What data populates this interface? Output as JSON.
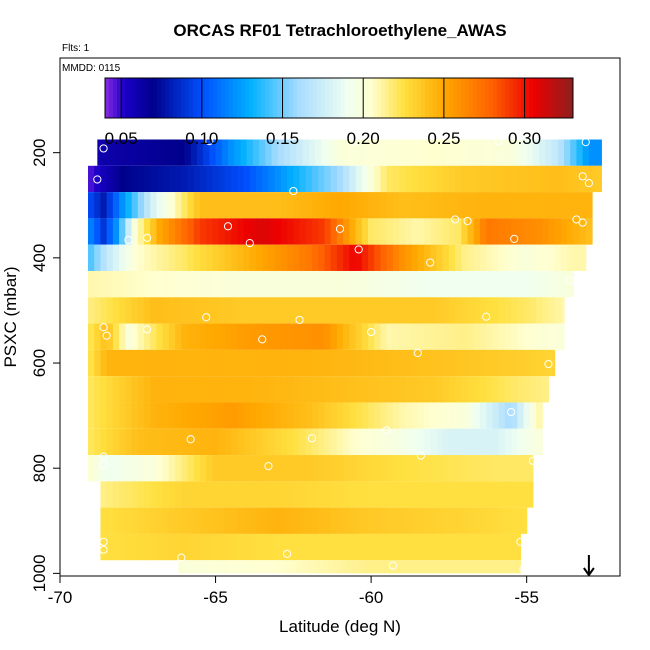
{
  "chart_data": {
    "type": "heatmap",
    "title": "ORCAS RF01 Tetrachloroethylene_AWAS",
    "flights_note": "Flts: 1",
    "date_note": "MMDD: 0115",
    "xlabel": "Latitude (deg N)",
    "ylabel": "PSXC (mbar)",
    "xlim": [
      -70,
      -52
    ],
    "ylim": [
      1005,
      20
    ],
    "x_ticks": [
      -70,
      -65,
      -60,
      -55
    ],
    "x_tick_labels": [
      "-70",
      "-65",
      "-60",
      "-55"
    ],
    "y_ticks": [
      200,
      400,
      600,
      800,
      1000
    ],
    "y_tick_labels": [
      "200",
      "400",
      "600",
      "800",
      "1000"
    ],
    "colorbar": {
      "range": [
        0.04,
        0.33
      ],
      "ticks": [
        0.05,
        0.1,
        0.15,
        0.2,
        0.25,
        0.3
      ],
      "tick_labels": [
        "0.05",
        "0.10",
        "0.15",
        "0.20",
        "0.25",
        "0.30"
      ],
      "stops": [
        {
          "v": 0.04,
          "color": "#8a2be2"
        },
        {
          "v": 0.052,
          "color": "#1a00c8"
        },
        {
          "v": 0.07,
          "color": "#00008b"
        },
        {
          "v": 0.1,
          "color": "#0050ff"
        },
        {
          "v": 0.13,
          "color": "#00b0ff"
        },
        {
          "v": 0.16,
          "color": "#a8dcff"
        },
        {
          "v": 0.19,
          "color": "#f0fff0"
        },
        {
          "v": 0.205,
          "color": "#ffffd0"
        },
        {
          "v": 0.225,
          "color": "#ffe040"
        },
        {
          "v": 0.25,
          "color": "#ffa800"
        },
        {
          "v": 0.28,
          "color": "#ff6000"
        },
        {
          "v": 0.305,
          "color": "#ee0000"
        },
        {
          "v": 0.33,
          "color": "#8b2020"
        }
      ]
    },
    "bands": [
      {
        "p0": 175,
        "p1": 225,
        "lat0": -68.8,
        "lat1": -52.6,
        "profile": [
          [
            -68.8,
            0.06
          ],
          [
            -66,
            0.07
          ],
          [
            -64.5,
            0.12
          ],
          [
            -63,
            0.16
          ],
          [
            -61,
            0.2
          ],
          [
            -58,
            0.205
          ],
          [
            -55.5,
            0.2
          ],
          [
            -54,
            0.17
          ],
          [
            -53,
            0.12
          ],
          [
            -52.6,
            0.12
          ]
        ]
      },
      {
        "p0": 225,
        "p1": 275,
        "lat0": -69.1,
        "lat1": -52.6,
        "profile": [
          [
            -69.1,
            0.045
          ],
          [
            -68,
            0.07
          ],
          [
            -66,
            0.08
          ],
          [
            -64,
            0.1
          ],
          [
            -62,
            0.14
          ],
          [
            -61,
            0.16
          ],
          [
            -59.5,
            0.22
          ],
          [
            -57,
            0.235
          ],
          [
            -54,
            0.24
          ],
          [
            -52.6,
            0.235
          ]
        ]
      },
      {
        "p0": 275,
        "p1": 325,
        "lat0": -69.1,
        "lat1": -52.9,
        "profile": [
          [
            -69.1,
            0.1
          ],
          [
            -68.6,
            0.08
          ],
          [
            -68,
            0.12
          ],
          [
            -67,
            0.18
          ],
          [
            -65.5,
            0.24
          ],
          [
            -63,
            0.24
          ],
          [
            -61,
            0.25
          ],
          [
            -59,
            0.24
          ],
          [
            -56.5,
            0.245
          ],
          [
            -53,
            0.245
          ],
          [
            -52.9,
            0.24
          ]
        ]
      },
      {
        "p0": 325,
        "p1": 375,
        "lat0": -69.1,
        "lat1": -52.9,
        "profile": [
          [
            -69.1,
            0.12
          ],
          [
            -68.6,
            0.09
          ],
          [
            -68.2,
            0.12
          ],
          [
            -67.6,
            0.2
          ],
          [
            -66.8,
            0.25
          ],
          [
            -65.5,
            0.29
          ],
          [
            -63.5,
            0.31
          ],
          [
            -61.5,
            0.29
          ],
          [
            -60,
            0.22
          ],
          [
            -58.5,
            0.21
          ],
          [
            -57.2,
            0.22
          ],
          [
            -56.3,
            0.27
          ],
          [
            -54.5,
            0.26
          ],
          [
            -53,
            0.24
          ],
          [
            -52.9,
            0.24
          ]
        ]
      },
      {
        "p0": 375,
        "p1": 425,
        "lat0": -69.1,
        "lat1": -53.1,
        "profile": [
          [
            -69.1,
            0.14
          ],
          [
            -68.5,
            0.17
          ],
          [
            -67.5,
            0.205
          ],
          [
            -66,
            0.22
          ],
          [
            -64,
            0.245
          ],
          [
            -62,
            0.27
          ],
          [
            -60.5,
            0.305
          ],
          [
            -59,
            0.26
          ],
          [
            -57,
            0.215
          ],
          [
            -55,
            0.2
          ],
          [
            -53.5,
            0.21
          ],
          [
            -53.1,
            0.21
          ]
        ]
      },
      {
        "p0": 425,
        "p1": 475,
        "lat0": -69.1,
        "lat1": -53.5,
        "profile": [
          [
            -69.1,
            0.21
          ],
          [
            -67,
            0.205
          ],
          [
            -64,
            0.2
          ],
          [
            -61,
            0.2
          ],
          [
            -58,
            0.19
          ],
          [
            -55,
            0.19
          ],
          [
            -53.5,
            0.2
          ]
        ]
      },
      {
        "p0": 475,
        "p1": 525,
        "lat0": -69.1,
        "lat1": -53.8,
        "profile": [
          [
            -69.1,
            0.215
          ],
          [
            -67,
            0.24
          ],
          [
            -64,
            0.235
          ],
          [
            -61,
            0.235
          ],
          [
            -58,
            0.235
          ],
          [
            -55,
            0.22
          ],
          [
            -53.8,
            0.21
          ]
        ]
      },
      {
        "p0": 525,
        "p1": 575,
        "lat0": -69.1,
        "lat1": -53.8,
        "profile": [
          [
            -69.1,
            0.22
          ],
          [
            -68.5,
            0.24
          ],
          [
            -67.8,
            0.2
          ],
          [
            -66,
            0.245
          ],
          [
            -64,
            0.255
          ],
          [
            -61.5,
            0.26
          ],
          [
            -59.5,
            0.21
          ],
          [
            -57,
            0.215
          ],
          [
            -55,
            0.205
          ],
          [
            -53.8,
            0.2
          ]
        ]
      },
      {
        "p0": 575,
        "p1": 625,
        "lat0": -69.1,
        "lat1": -54.1,
        "profile": [
          [
            -69.1,
            0.22
          ],
          [
            -68.5,
            0.245
          ],
          [
            -66,
            0.245
          ],
          [
            -62,
            0.245
          ],
          [
            -59,
            0.24
          ],
          [
            -56,
            0.235
          ],
          [
            -54.1,
            0.23
          ]
        ]
      },
      {
        "p0": 625,
        "p1": 675,
        "lat0": -69.1,
        "lat1": -54.3,
        "profile": [
          [
            -69.1,
            0.22
          ],
          [
            -67,
            0.245
          ],
          [
            -64,
            0.245
          ],
          [
            -61,
            0.24
          ],
          [
            -58,
            0.235
          ],
          [
            -55.5,
            0.22
          ],
          [
            -54.3,
            0.215
          ]
        ]
      },
      {
        "p0": 675,
        "p1": 725,
        "lat0": -69.1,
        "lat1": -54.5,
        "profile": [
          [
            -69.1,
            0.22
          ],
          [
            -67,
            0.245
          ],
          [
            -64.5,
            0.255
          ],
          [
            -62,
            0.24
          ],
          [
            -59,
            0.21
          ],
          [
            -57,
            0.2
          ],
          [
            -55.5,
            0.16
          ],
          [
            -54.5,
            0.215
          ]
        ]
      },
      {
        "p0": 725,
        "p1": 775,
        "lat0": -69.1,
        "lat1": -54.5,
        "profile": [
          [
            -69.1,
            0.22
          ],
          [
            -67.5,
            0.24
          ],
          [
            -65,
            0.245
          ],
          [
            -62.5,
            0.225
          ],
          [
            -60.5,
            0.205
          ],
          [
            -59,
            0.195
          ],
          [
            -57.5,
            0.18
          ],
          [
            -56,
            0.18
          ],
          [
            -54.5,
            0.2
          ]
        ]
      },
      {
        "p0": 775,
        "p1": 825,
        "lat0": -69.1,
        "lat1": -54.8,
        "profile": [
          [
            -69.1,
            0.205
          ],
          [
            -68.5,
            0.19
          ],
          [
            -67,
            0.2
          ],
          [
            -65,
            0.235
          ],
          [
            -62,
            0.235
          ],
          [
            -59,
            0.225
          ],
          [
            -56,
            0.22
          ],
          [
            -54.8,
            0.22
          ]
        ]
      },
      {
        "p0": 825,
        "p1": 875,
        "lat0": -68.7,
        "lat1": -54.8,
        "profile": [
          [
            -68.7,
            0.215
          ],
          [
            -66,
            0.23
          ],
          [
            -63,
            0.23
          ],
          [
            -60,
            0.225
          ],
          [
            -57,
            0.225
          ],
          [
            -54.8,
            0.225
          ]
        ]
      },
      {
        "p0": 875,
        "p1": 925,
        "lat0": -68.7,
        "lat1": -55.0,
        "profile": [
          [
            -68.7,
            0.225
          ],
          [
            -66,
            0.235
          ],
          [
            -63,
            0.245
          ],
          [
            -60,
            0.235
          ],
          [
            -57,
            0.23
          ],
          [
            -55,
            0.225
          ]
        ]
      },
      {
        "p0": 925,
        "p1": 975,
        "lat0": -68.7,
        "lat1": -55.2,
        "profile": [
          [
            -68.7,
            0.225
          ],
          [
            -66,
            0.23
          ],
          [
            -63,
            0.225
          ],
          [
            -60,
            0.225
          ],
          [
            -57,
            0.225
          ],
          [
            -55.2,
            0.225
          ]
        ]
      },
      {
        "p0": 975,
        "p1": 1000,
        "lat0": -66.2,
        "lat1": -55.2,
        "profile": [
          [
            -66.2,
            0.2
          ],
          [
            -63,
            0.205
          ],
          [
            -60,
            0.215
          ],
          [
            -57,
            0.215
          ],
          [
            -55.2,
            0.215
          ]
        ]
      }
    ],
    "sample_points": [
      {
        "lat": -68.6,
        "p": 192
      },
      {
        "lat": -65.2,
        "p": 178
      },
      {
        "lat": -60.5,
        "p": 180
      },
      {
        "lat": -55.9,
        "p": 178
      },
      {
        "lat": -53.1,
        "p": 180
      },
      {
        "lat": -68.8,
        "p": 251
      },
      {
        "lat": -62.5,
        "p": 273
      },
      {
        "lat": -53.2,
        "p": 245
      },
      {
        "lat": -53.0,
        "p": 258
      },
      {
        "lat": -67.8,
        "p": 366
      },
      {
        "lat": -67.2,
        "p": 362
      },
      {
        "lat": -64.6,
        "p": 340
      },
      {
        "lat": -61.0,
        "p": 345
      },
      {
        "lat": -57.3,
        "p": 327
      },
      {
        "lat": -56.9,
        "p": 330
      },
      {
        "lat": -53.4,
        "p": 327
      },
      {
        "lat": -53.2,
        "p": 333
      },
      {
        "lat": -63.9,
        "p": 372
      },
      {
        "lat": -60.4,
        "p": 384
      },
      {
        "lat": -55.4,
        "p": 364
      },
      {
        "lat": -58.1,
        "p": 409
      },
      {
        "lat": -53.6,
        "p": 443
      },
      {
        "lat": -68.6,
        "p": 532
      },
      {
        "lat": -68.5,
        "p": 548
      },
      {
        "lat": -67.2,
        "p": 536
      },
      {
        "lat": -65.3,
        "p": 513
      },
      {
        "lat": -62.3,
        "p": 518
      },
      {
        "lat": -60.0,
        "p": 541
      },
      {
        "lat": -58.5,
        "p": 581
      },
      {
        "lat": -56.3,
        "p": 512
      },
      {
        "lat": -63.5,
        "p": 555
      },
      {
        "lat": -54.3,
        "p": 602
      },
      {
        "lat": -55.5,
        "p": 693
      },
      {
        "lat": -65.8,
        "p": 745
      },
      {
        "lat": -61.9,
        "p": 743
      },
      {
        "lat": -59.5,
        "p": 728
      },
      {
        "lat": -68.6,
        "p": 778
      },
      {
        "lat": -68.6,
        "p": 794
      },
      {
        "lat": -63.3,
        "p": 796
      },
      {
        "lat": -58.4,
        "p": 776
      },
      {
        "lat": -54.8,
        "p": 786
      },
      {
        "lat": -54.6,
        "p": 838
      },
      {
        "lat": -68.6,
        "p": 940
      },
      {
        "lat": -68.6,
        "p": 955
      },
      {
        "lat": -62.7,
        "p": 963
      },
      {
        "lat": -55.2,
        "p": 940
      },
      {
        "lat": -66.1,
        "p": 970
      },
      {
        "lat": -59.3,
        "p": 985
      },
      {
        "lat": -55.1,
        "p": 992
      }
    ],
    "arrow_lat": -53.0
  }
}
